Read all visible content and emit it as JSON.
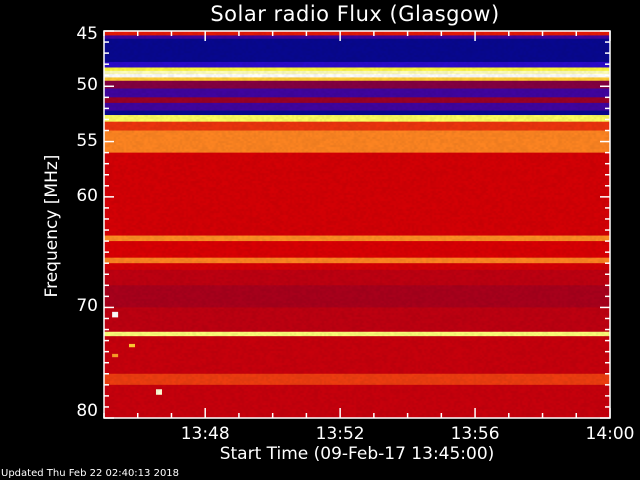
{
  "chart_data": {
    "type": "heatmap",
    "title": "Solar radio Flux (Glasgow)",
    "xlabel": "Start Time (09-Feb-17 13:45:00)",
    "ylabel": "Frequency [MHz]",
    "xlim": [
      "13:45",
      "14:00"
    ],
    "ylim": [
      45,
      80
    ],
    "y_inverted": true,
    "x_ticks": [
      "13:48",
      "13:52",
      "13:56",
      "14:00"
    ],
    "y_ticks": [
      45,
      50,
      55,
      60,
      70,
      80
    ],
    "colormap": [
      "#000040",
      "#1010ff",
      "#500080",
      "#a00020",
      "#e00000",
      "#ff8020",
      "#ffff40",
      "#ffffff"
    ],
    "bands": [
      [
        45,
        45.4,
        0.6
      ],
      [
        45.4,
        45.7,
        0.25
      ],
      [
        45.7,
        47.8,
        0.06
      ],
      [
        47.8,
        48.3,
        0.2
      ],
      [
        48.3,
        48.6,
        0.85
      ],
      [
        48.6,
        48.9,
        0.95
      ],
      [
        48.9,
        49.2,
        1.0
      ],
      [
        49.2,
        49.5,
        0.8
      ],
      [
        49.5,
        50.2,
        0.38
      ],
      [
        50.2,
        51,
        0.25
      ],
      [
        51,
        51.5,
        0.42
      ],
      [
        51.5,
        52.2,
        0.25
      ],
      [
        52.2,
        52.6,
        0.06
      ],
      [
        52.6,
        53.2,
        0.88
      ],
      [
        53.2,
        54,
        0.63
      ],
      [
        54,
        56,
        0.72
      ],
      [
        56,
        63.5,
        0.55
      ],
      [
        63.5,
        64,
        0.73
      ],
      [
        64,
        65.5,
        0.56
      ],
      [
        65.5,
        66,
        0.72
      ],
      [
        66,
        66.6,
        0.55
      ],
      [
        66.6,
        68,
        0.5
      ],
      [
        68,
        70,
        0.45
      ],
      [
        70,
        72.2,
        0.5
      ],
      [
        72.2,
        72.6,
        0.9
      ],
      [
        72.6,
        76,
        0.52
      ],
      [
        76,
        77,
        0.64
      ],
      [
        77,
        80,
        0.52
      ]
    ],
    "bursts": [
      {
        "time": "13:45.3",
        "freq": [
          70.4,
          70.9
        ],
        "level": 1.0
      },
      {
        "time": "13:45.3",
        "freq": [
          74.2,
          74.5
        ],
        "level": 0.75
      },
      {
        "time": "13:46.6",
        "freq": [
          77.4,
          77.9
        ],
        "level": 0.97
      },
      {
        "time": "13:45.8",
        "freq": [
          73.3,
          73.6
        ],
        "level": 0.8
      }
    ]
  },
  "footer": {
    "updated": "Updated Thu Feb 22 02:40:13 2018"
  }
}
